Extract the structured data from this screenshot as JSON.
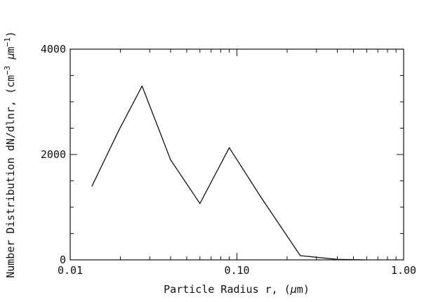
{
  "chart_data": {
    "type": "line",
    "xscale": "log",
    "xlim": [
      0.01,
      1.0
    ],
    "ylim": [
      0,
      4000
    ],
    "xlabel": {
      "prefix": "Particle Radius r, (",
      "greek": "μ",
      "suffix": "m)"
    },
    "ylabel": {
      "main": "Number Distribution dN/dlnr, (cm",
      "sup1": "−3",
      "mid": " ",
      "greek": "μ",
      "m": "m",
      "sup2": "−1",
      "close": ")"
    },
    "x_ticks": [
      {
        "value": 0.01,
        "label": "0.01"
      },
      {
        "value": 0.1,
        "label": "0.10"
      },
      {
        "value": 1.0,
        "label": "1.00"
      }
    ],
    "y_ticks": [
      {
        "value": 0,
        "label": "0"
      },
      {
        "value": 2000,
        "label": "2000"
      },
      {
        "value": 4000,
        "label": "4000"
      }
    ],
    "y_minor_step": 500,
    "series": [
      {
        "color": "#111111",
        "x": [
          0.0135,
          0.0195,
          0.027,
          0.04,
          0.06,
          0.09,
          0.14,
          0.24,
          0.4,
          0.58
        ],
        "y": [
          1400,
          2450,
          3300,
          1900,
          1070,
          2130,
          1180,
          80,
          10,
          0
        ]
      }
    ],
    "grid": false,
    "legend": "none"
  }
}
